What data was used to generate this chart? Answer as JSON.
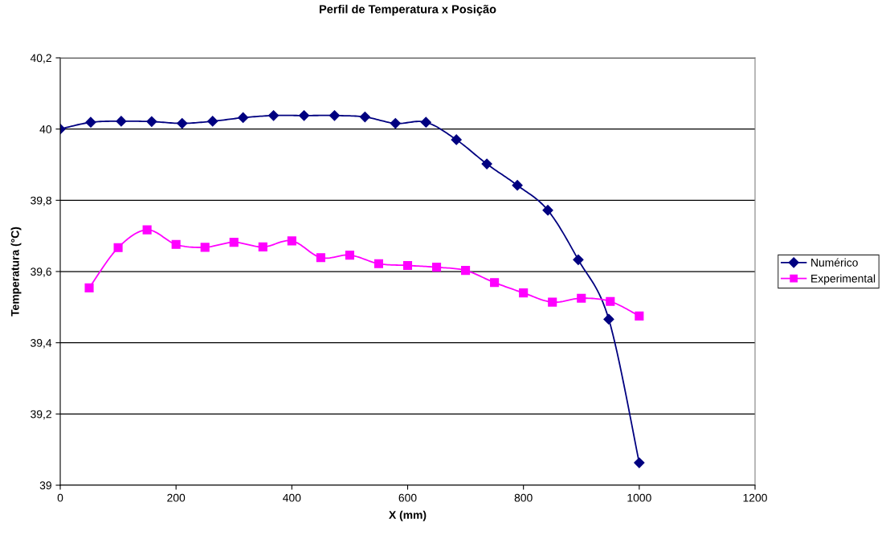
{
  "chart_data": {
    "type": "line",
    "title": "Perfil de Temperatura x Posição",
    "xlabel": "X (mm)",
    "ylabel": "Temperatura (°C)",
    "xlim": [
      0,
      1200
    ],
    "xticks": [
      0,
      200,
      400,
      600,
      800,
      1000,
      1200
    ],
    "ylim": [
      39,
      40.2
    ],
    "yticks": [
      {
        "value": 39,
        "label": "39"
      },
      {
        "value": 39.2,
        "label": "39,2"
      },
      {
        "value": 39.4,
        "label": "39,4"
      },
      {
        "value": 39.6,
        "label": "39,6"
      },
      {
        "value": 39.8,
        "label": "39,8"
      },
      {
        "value": 40,
        "label": "40"
      },
      {
        "value": 40.2,
        "label": "40,2"
      }
    ],
    "grid": "y",
    "legend": "right",
    "line_style": "solid",
    "series": [
      {
        "name": "Numérico",
        "color": "#000080",
        "marker": "diamond",
        "x": [
          0,
          52.6,
          105.3,
          157.9,
          210.5,
          263.2,
          315.8,
          368.4,
          421.1,
          473.7,
          526.3,
          578.9,
          631.6,
          684.2,
          736.8,
          789.5,
          842.1,
          894.7,
          947.4,
          1000
        ],
        "values": [
          40.0,
          40.019,
          40.022,
          40.021,
          40.016,
          40.022,
          40.032,
          40.038,
          40.038,
          40.038,
          40.034,
          40.016,
          40.019,
          39.97,
          39.902,
          39.842,
          39.772,
          39.633,
          39.466,
          39.063
        ]
      },
      {
        "name": "Experimental",
        "color": "#ff00ff",
        "marker": "square",
        "x": [
          50,
          100,
          150,
          200,
          250,
          300,
          350,
          400,
          450,
          500,
          550,
          600,
          650,
          700,
          750,
          800,
          850,
          900,
          950,
          1000
        ],
        "values": [
          39.554,
          39.667,
          39.717,
          39.676,
          39.668,
          39.682,
          39.669,
          39.686,
          39.639,
          39.646,
          39.622,
          39.617,
          39.612,
          39.603,
          39.569,
          39.54,
          39.514,
          39.525,
          39.516,
          39.475
        ]
      }
    ]
  }
}
